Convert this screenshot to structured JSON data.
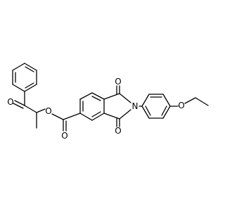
{
  "atoms": [
    "O",
    "O",
    "O",
    "O",
    "N",
    "O"
  ]
}
